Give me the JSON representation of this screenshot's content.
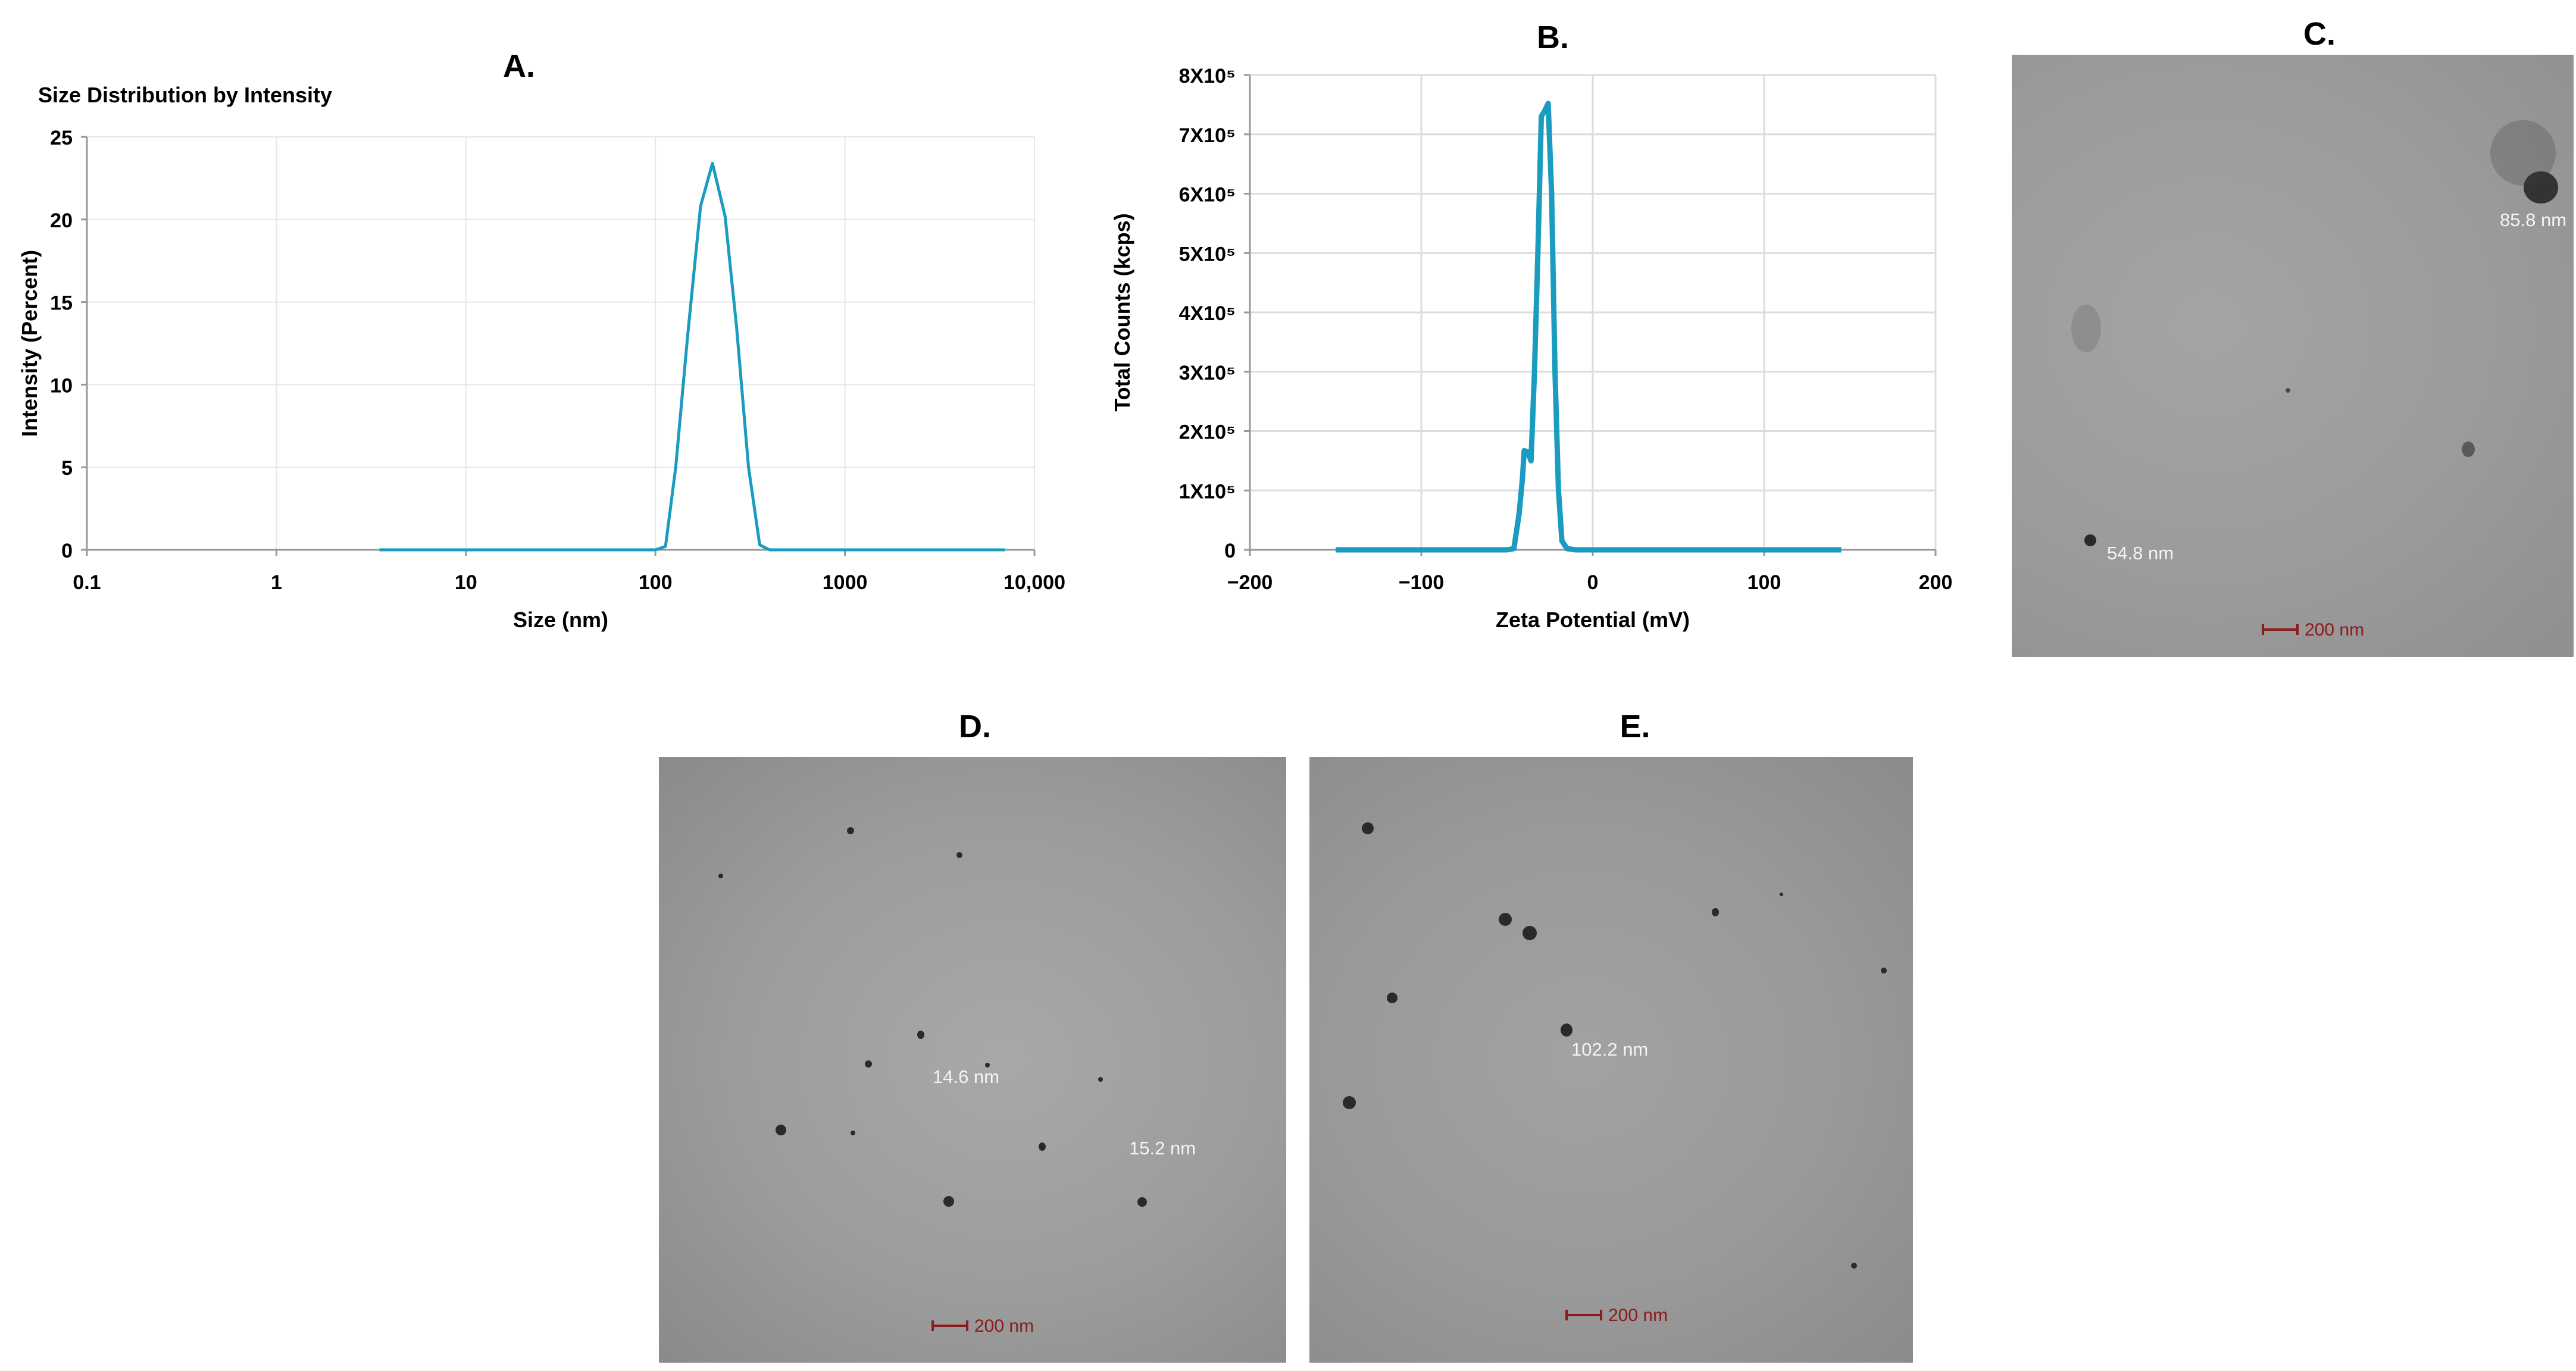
{
  "panels": {
    "a": {
      "label": "A."
    },
    "b": {
      "label": "B."
    },
    "c": {
      "label": "C.",
      "annotations": [
        "85.8 nm",
        "54.8 nm"
      ],
      "scale_bar": "200 nm"
    },
    "d": {
      "label": "D.",
      "annotations": [
        "14.6 nm",
        "15.2 nm"
      ],
      "scale_bar": "200 nm"
    },
    "e": {
      "label": "E.",
      "annotations": [
        "102.2 nm"
      ],
      "scale_bar": "200 nm"
    }
  },
  "chart_data": [
    {
      "type": "line",
      "title": "Size Distribution by Intensity",
      "xlabel": "Size (nm)",
      "ylabel": "Intensity (Percent)",
      "x_scale": "log",
      "xlim": [
        0.1,
        10000
      ],
      "ylim": [
        0,
        25
      ],
      "x_ticks": [
        0.1,
        1,
        10,
        100,
        1000,
        10000
      ],
      "x_tick_labels": [
        "0.1",
        "1",
        "10",
        "100",
        "1000",
        "10,000"
      ],
      "y_ticks": [
        0,
        5,
        10,
        15,
        20,
        25
      ],
      "y_tick_labels": [
        "0",
        "5",
        "10",
        "15",
        "20",
        "25"
      ],
      "grid": true,
      "color": "#1a9bc0",
      "series": [
        {
          "x": [
            3.5,
            50,
            100,
            113,
            128,
            148,
            173,
            200,
            233,
            268,
            310,
            355,
            400,
            500,
            1000,
            7000
          ],
          "y": [
            0,
            0,
            0,
            0.2,
            5,
            13,
            20.8,
            23.4,
            20.2,
            13.5,
            5,
            0.3,
            0,
            0,
            0,
            0
          ]
        }
      ]
    },
    {
      "type": "line",
      "title": "",
      "xlabel": "Zeta Potential (mV)",
      "ylabel": "Total Counts (kcps)",
      "xlim": [
        -200,
        200
      ],
      "ylim": [
        0,
        800000
      ],
      "x_ticks": [
        -200,
        -100,
        0,
        100,
        200
      ],
      "x_tick_labels": [
        "−200",
        "−100",
        "0",
        "100",
        "200"
      ],
      "y_ticks": [
        0,
        100000,
        200000,
        300000,
        400000,
        500000,
        600000,
        700000,
        800000
      ],
      "y_tick_labels": [
        "0",
        "1X10⁵",
        "2X10⁵",
        "3X10⁵",
        "4X10⁵",
        "5X10⁵",
        "6X10⁵",
        "7X10⁵",
        "8X10⁵"
      ],
      "grid": true,
      "color": "#1a9bc0",
      "series": [
        {
          "x": [
            -150,
            -100,
            -50,
            -46,
            -43,
            -41,
            -40,
            -38,
            -36,
            -34,
            -32,
            -30,
            -28,
            -26,
            -24,
            -22,
            -20,
            -18,
            -15,
            -10,
            0,
            100,
            145
          ],
          "y": [
            0,
            0,
            0,
            2000,
            60000,
            120000,
            167000,
            165000,
            150000,
            300000,
            500000,
            730000,
            740000,
            752000,
            600000,
            300000,
            100000,
            15000,
            2000,
            0,
            0,
            0,
            0
          ]
        }
      ]
    }
  ]
}
